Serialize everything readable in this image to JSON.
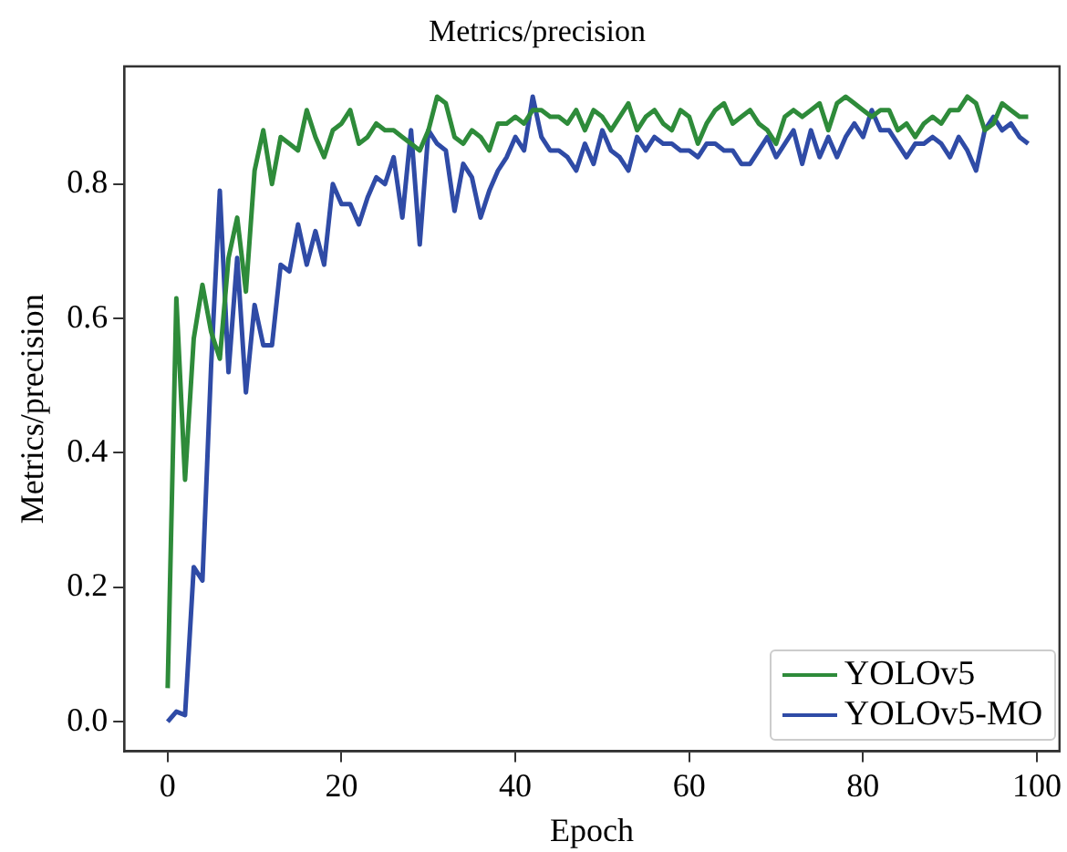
{
  "chart_data": {
    "type": "line",
    "title": "Metrics/precision",
    "xlabel": "Epoch",
    "ylabel": "Metrics/precision",
    "x": [
      0,
      1,
      2,
      3,
      4,
      5,
      6,
      7,
      8,
      9,
      10,
      11,
      12,
      13,
      14,
      15,
      16,
      17,
      18,
      19,
      20,
      21,
      22,
      23,
      24,
      25,
      26,
      27,
      28,
      29,
      30,
      31,
      32,
      33,
      34,
      35,
      36,
      37,
      38,
      39,
      40,
      41,
      42,
      43,
      44,
      45,
      46,
      47,
      48,
      49,
      50,
      51,
      52,
      53,
      54,
      55,
      56,
      57,
      58,
      59,
      60,
      61,
      62,
      63,
      64,
      65,
      66,
      67,
      68,
      69,
      70,
      71,
      72,
      73,
      74,
      75,
      76,
      77,
      78,
      79,
      80,
      81,
      82,
      83,
      84,
      85,
      86,
      87,
      88,
      89,
      90,
      91,
      92,
      93,
      94,
      95,
      96,
      97,
      98,
      99
    ],
    "series": [
      {
        "name": "YOLOv5",
        "color": "#2e8b3a",
        "values": [
          0.05,
          0.63,
          0.36,
          0.57,
          0.65,
          0.58,
          0.54,
          0.69,
          0.75,
          0.64,
          0.82,
          0.88,
          0.8,
          0.87,
          0.86,
          0.85,
          0.91,
          0.87,
          0.84,
          0.88,
          0.89,
          0.91,
          0.86,
          0.87,
          0.89,
          0.88,
          0.88,
          0.87,
          0.86,
          0.85,
          0.88,
          0.93,
          0.92,
          0.87,
          0.86,
          0.88,
          0.87,
          0.85,
          0.89,
          0.89,
          0.9,
          0.89,
          0.91,
          0.91,
          0.9,
          0.9,
          0.89,
          0.91,
          0.88,
          0.91,
          0.9,
          0.88,
          0.9,
          0.92,
          0.88,
          0.9,
          0.91,
          0.89,
          0.88,
          0.91,
          0.9,
          0.86,
          0.89,
          0.91,
          0.92,
          0.89,
          0.9,
          0.91,
          0.89,
          0.88,
          0.86,
          0.9,
          0.91,
          0.9,
          0.91,
          0.92,
          0.88,
          0.92,
          0.93,
          0.92,
          0.91,
          0.9,
          0.91,
          0.91,
          0.88,
          0.89,
          0.87,
          0.89,
          0.9,
          0.89,
          0.91,
          0.91,
          0.93,
          0.92,
          0.88,
          0.89,
          0.92,
          0.91,
          0.9,
          0.9
        ]
      },
      {
        "name": "YOLOv5-MO",
        "color": "#2f4ba6",
        "values": [
          0.0,
          0.015,
          0.01,
          0.23,
          0.21,
          0.53,
          0.79,
          0.52,
          0.69,
          0.49,
          0.62,
          0.56,
          0.56,
          0.68,
          0.67,
          0.74,
          0.68,
          0.73,
          0.68,
          0.8,
          0.77,
          0.77,
          0.74,
          0.78,
          0.81,
          0.8,
          0.84,
          0.75,
          0.88,
          0.71,
          0.88,
          0.86,
          0.85,
          0.76,
          0.83,
          0.81,
          0.75,
          0.79,
          0.82,
          0.84,
          0.87,
          0.85,
          0.93,
          0.87,
          0.85,
          0.85,
          0.84,
          0.82,
          0.86,
          0.83,
          0.88,
          0.85,
          0.84,
          0.82,
          0.87,
          0.85,
          0.87,
          0.86,
          0.86,
          0.85,
          0.85,
          0.84,
          0.86,
          0.86,
          0.85,
          0.85,
          0.83,
          0.83,
          0.85,
          0.87,
          0.84,
          0.86,
          0.88,
          0.83,
          0.88,
          0.84,
          0.87,
          0.84,
          0.87,
          0.89,
          0.87,
          0.91,
          0.88,
          0.88,
          0.86,
          0.84,
          0.86,
          0.86,
          0.87,
          0.86,
          0.84,
          0.87,
          0.85,
          0.82,
          0.88,
          0.9,
          0.88,
          0.89,
          0.87,
          0.86
        ]
      }
    ],
    "xlim": [
      -5,
      102.6
    ],
    "xticks": [
      0,
      20,
      40,
      60,
      80,
      100
    ],
    "ylim": [
      -0.044,
      0.975
    ],
    "yticks": [
      {
        "value": 0,
        "label": "0.0"
      },
      {
        "value": 0.2,
        "label": "0.2"
      },
      {
        "value": 0.4,
        "label": "0.4"
      },
      {
        "value": 0.6,
        "label": "0.6"
      },
      {
        "value": 0.8,
        "label": "0.8"
      }
    ],
    "grid": false,
    "legend": "bottom right",
    "marker": "none",
    "line_style": "solid"
  }
}
